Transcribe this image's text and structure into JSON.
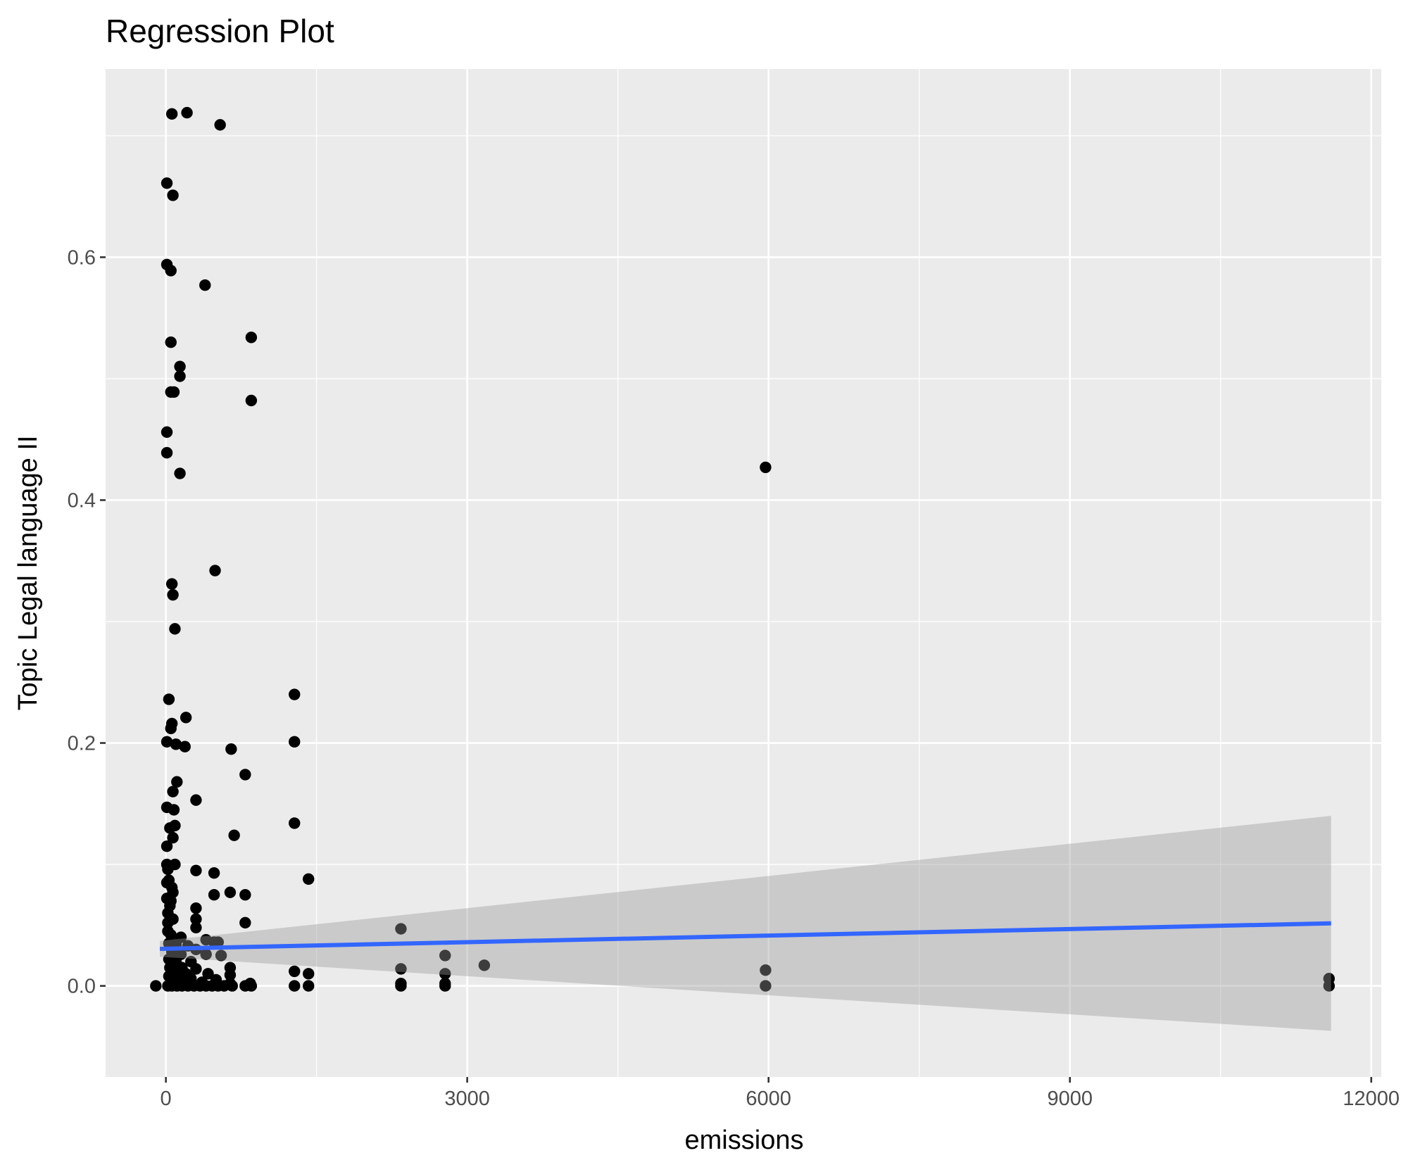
{
  "chart_data": {
    "type": "scatter",
    "title": "Regression Plot",
    "xlabel": "emissions",
    "ylabel": "Topic Legal language II",
    "xlim": [
      -600,
      12100
    ],
    "ylim": [
      -0.075,
      0.755
    ],
    "x_ticks": [
      0,
      3000,
      6000,
      9000,
      12000
    ],
    "x_tick_labels": [
      "0",
      "3000",
      "6000",
      "9000",
      "12000"
    ],
    "y_ticks": [
      0.0,
      0.2,
      0.4,
      0.6
    ],
    "y_tick_labels": [
      "0.0",
      "0.2",
      "0.4",
      "0.6"
    ],
    "grid": true,
    "legend": "none",
    "colors": {
      "panel": "#ebebeb",
      "grid": "#ffffff",
      "points": "#000000",
      "fit_line": "#3366ff",
      "confidence_band": "#c8c8c8"
    },
    "regression": {
      "x": [
        -60,
        11600
      ],
      "y": [
        0.0305,
        0.0515
      ],
      "ci_lower": [
        0.024,
        -0.037
      ],
      "ci_upper": [
        0.037,
        0.14
      ]
    },
    "points": [
      [
        60,
        0.718
      ],
      [
        210,
        0.719
      ],
      [
        540,
        0.709
      ],
      [
        10,
        0.661
      ],
      [
        70,
        0.651
      ],
      [
        10,
        0.594
      ],
      [
        50,
        0.589
      ],
      [
        390,
        0.577
      ],
      [
        50,
        0.53
      ],
      [
        850,
        0.534
      ],
      [
        140,
        0.51
      ],
      [
        140,
        0.502
      ],
      [
        50,
        0.489
      ],
      [
        80,
        0.489
      ],
      [
        850,
        0.482
      ],
      [
        10,
        0.456
      ],
      [
        10,
        0.439
      ],
      [
        140,
        0.422
      ],
      [
        5970,
        0.427
      ],
      [
        490,
        0.342
      ],
      [
        60,
        0.331
      ],
      [
        70,
        0.322
      ],
      [
        90,
        0.294
      ],
      [
        30,
        0.236
      ],
      [
        1280,
        0.24
      ],
      [
        60,
        0.216
      ],
      [
        50,
        0.212
      ],
      [
        200,
        0.221
      ],
      [
        10,
        0.201
      ],
      [
        100,
        0.199
      ],
      [
        190,
        0.197
      ],
      [
        650,
        0.195
      ],
      [
        1280,
        0.201
      ],
      [
        790,
        0.174
      ],
      [
        110,
        0.168
      ],
      [
        70,
        0.16
      ],
      [
        300,
        0.153
      ],
      [
        10,
        0.147
      ],
      [
        80,
        0.145
      ],
      [
        90,
        0.132
      ],
      [
        40,
        0.13
      ],
      [
        1280,
        0.134
      ],
      [
        680,
        0.124
      ],
      [
        70,
        0.122
      ],
      [
        10,
        0.115
      ],
      [
        10,
        0.1
      ],
      [
        90,
        0.1
      ],
      [
        20,
        0.096
      ],
      [
        300,
        0.095
      ],
      [
        480,
        0.093
      ],
      [
        1420,
        0.088
      ],
      [
        30,
        0.087
      ],
      [
        10,
        0.085
      ],
      [
        60,
        0.081
      ],
      [
        70,
        0.077
      ],
      [
        640,
        0.077
      ],
      [
        480,
        0.075
      ],
      [
        790,
        0.075
      ],
      [
        10,
        0.072
      ],
      [
        50,
        0.07
      ],
      [
        40,
        0.066
      ],
      [
        300,
        0.064
      ],
      [
        20,
        0.06
      ],
      [
        70,
        0.055
      ],
      [
        20,
        0.052
      ],
      [
        300,
        0.055
      ],
      [
        790,
        0.052
      ],
      [
        300,
        0.048
      ],
      [
        2340,
        0.047
      ],
      [
        20,
        0.045
      ],
      [
        50,
        0.042
      ],
      [
        150,
        0.04
      ],
      [
        400,
        0.038
      ],
      [
        480,
        0.036
      ],
      [
        520,
        0.036
      ],
      [
        30,
        0.035
      ],
      [
        100,
        0.034
      ],
      [
        220,
        0.033
      ],
      [
        300,
        0.03
      ],
      [
        60,
        0.028
      ],
      [
        150,
        0.026
      ],
      [
        400,
        0.026
      ],
      [
        550,
        0.025
      ],
      [
        2780,
        0.025
      ],
      [
        30,
        0.022
      ],
      [
        100,
        0.02
      ],
      [
        250,
        0.02
      ],
      [
        3170,
        0.017
      ],
      [
        40,
        0.015
      ],
      [
        160,
        0.015
      ],
      [
        300,
        0.014
      ],
      [
        640,
        0.015
      ],
      [
        2340,
        0.014
      ],
      [
        5970,
        0.013
      ],
      [
        1280,
        0.012
      ],
      [
        70,
        0.012
      ],
      [
        200,
        0.01
      ],
      [
        420,
        0.01
      ],
      [
        640,
        0.009
      ],
      [
        1420,
        0.01
      ],
      [
        2780,
        0.01
      ],
      [
        30,
        0.008
      ],
      [
        120,
        0.007
      ],
      [
        250,
        0.006
      ],
      [
        500,
        0.005
      ],
      [
        11580,
        0.006
      ],
      [
        80,
        0.004
      ],
      [
        190,
        0.003
      ],
      [
        360,
        0.003
      ],
      [
        640,
        0.002
      ],
      [
        840,
        0.002
      ],
      [
        2340,
        0.002
      ],
      [
        2780,
        0.002
      ],
      [
        -100,
        0.0
      ],
      [
        20,
        0.0
      ],
      [
        60,
        0.0
      ],
      [
        110,
        0.0
      ],
      [
        160,
        0.0
      ],
      [
        220,
        0.0
      ],
      [
        280,
        0.0
      ],
      [
        340,
        0.0
      ],
      [
        400,
        0.0
      ],
      [
        460,
        0.0
      ],
      [
        520,
        0.0
      ],
      [
        580,
        0.0
      ],
      [
        660,
        0.0
      ],
      [
        790,
        0.0
      ],
      [
        850,
        0.0
      ],
      [
        1280,
        0.0
      ],
      [
        1420,
        0.0
      ],
      [
        2340,
        0.0
      ],
      [
        2780,
        0.0
      ],
      [
        5970,
        0.0
      ],
      [
        11580,
        0.0
      ]
    ]
  }
}
